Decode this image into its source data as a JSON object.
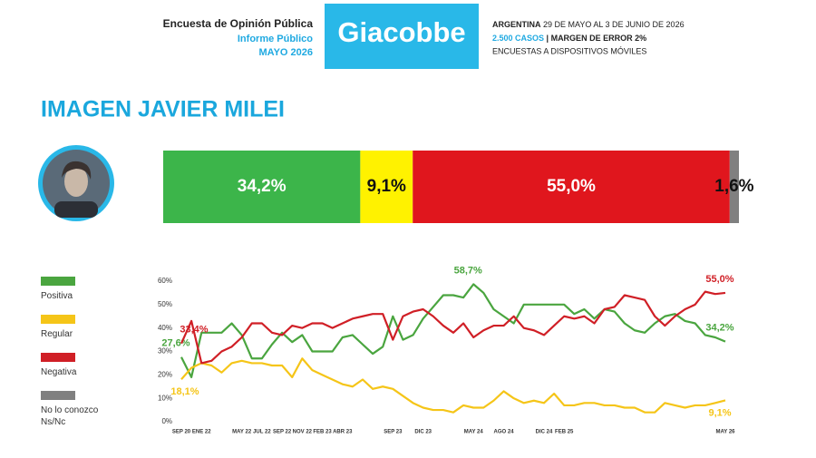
{
  "header": {
    "survey": "Encuesta de Opinión Pública",
    "report": "Informe Público",
    "date": "MAYO 2026",
    "brand": "Giacobbe",
    "country": "ARGENTINA",
    "period": "29 DE MAYO AL 3 DE JUNIO DE 2026",
    "cases": "2.500 CASOS",
    "margin": "| MARGEN DE ERROR 2%",
    "method": "ENCUESTAS A DISPOSITIVOS MÓVILES"
  },
  "title": "IMAGEN JAVIER MILEI",
  "chart_data": [
    {
      "type": "stacked_bar",
      "series": [
        {
          "name": "Positiva",
          "color": "#3cb54a",
          "values": [
            34.2
          ],
          "value_labels": [
            "34,2%"
          ]
        },
        {
          "name": "Regular",
          "color": "#fff200",
          "values": [
            9.1
          ],
          "value_labels": [
            "9,1%"
          ]
        },
        {
          "name": "Negativa",
          "color": "#e0161d",
          "values": [
            55.0
          ],
          "value_labels": [
            "55,0%"
          ]
        },
        {
          "name": "No lo conozco Ns/Nc",
          "color": "#808080",
          "values": [
            1.6
          ],
          "value_labels": [
            "1,6%"
          ]
        }
      ]
    },
    {
      "type": "line",
      "categories": [
        "SEP 20",
        null,
        "ENE 22",
        null,
        null,
        null,
        "MAY 22",
        null,
        "JUL 22",
        null,
        "SEP 22",
        null,
        "NOV 22",
        null,
        "FEB 23",
        null,
        "ABR 23",
        null,
        null,
        null,
        null,
        "SEP 23",
        null,
        null,
        "DIC 23",
        null,
        null,
        null,
        null,
        "MAY 24",
        null,
        null,
        "AGO 24",
        null,
        null,
        null,
        "DIC 24",
        null,
        "FEB 25",
        null,
        null,
        null,
        null,
        null,
        null,
        null,
        null,
        null,
        null,
        null,
        null,
        null,
        null,
        null,
        "MAY 26"
      ],
      "ylim": [
        0,
        60
      ],
      "yticks": [
        {
          "value": 0,
          "label": "0%"
        },
        {
          "value": 10,
          "label": "10%"
        },
        {
          "value": 20,
          "label": "20%"
        },
        {
          "value": 30,
          "label": "30%"
        },
        {
          "value": 40,
          "label": "40%"
        },
        {
          "value": 50,
          "label": "50%"
        },
        {
          "value": 60,
          "label": "60%"
        }
      ],
      "grid": false,
      "series": [
        {
          "name": "Positiva",
          "color": "#4aa53f",
          "values": [
            27.6,
            19,
            38,
            38,
            38,
            42,
            37,
            27,
            27,
            33,
            38,
            34,
            37,
            30,
            30,
            30,
            36,
            37,
            33,
            29,
            32,
            45,
            35,
            37,
            44,
            49,
            54,
            54,
            53,
            58.7,
            55,
            48,
            45,
            42,
            50,
            50,
            50,
            50,
            50,
            46,
            48,
            44,
            48,
            47,
            42,
            39,
            38,
            42,
            45,
            46,
            43,
            42,
            37,
            36,
            34.2
          ],
          "value_labels": [
            "27,6%",
            null,
            null,
            null,
            null,
            null,
            null,
            null,
            null,
            null,
            null,
            null,
            null,
            null,
            null,
            null,
            null,
            null,
            null,
            null,
            null,
            null,
            null,
            null,
            null,
            null,
            null,
            null,
            null,
            "58,7%",
            null,
            null,
            null,
            null,
            null,
            null,
            null,
            null,
            null,
            null,
            null,
            null,
            null,
            null,
            null,
            null,
            null,
            null,
            null,
            null,
            null,
            null,
            null,
            null,
            "34,2%"
          ]
        },
        {
          "name": "Regular",
          "color": "#f5c518",
          "values": [
            18.1,
            23,
            25,
            24,
            21,
            25,
            26,
            25,
            25,
            24,
            24,
            19,
            27,
            22,
            20,
            18,
            16,
            15,
            18,
            14,
            15,
            14,
            11,
            8,
            6,
            5,
            5,
            4,
            7,
            6,
            6,
            9,
            13,
            10,
            8,
            9,
            8,
            12,
            7,
            7,
            8,
            8,
            7,
            7,
            6,
            6,
            4,
            4,
            8,
            7,
            6,
            7,
            7,
            8,
            9.1
          ],
          "value_labels": [
            "18,1%",
            null,
            null,
            null,
            null,
            null,
            null,
            null,
            null,
            null,
            null,
            null,
            null,
            null,
            null,
            null,
            null,
            null,
            null,
            null,
            null,
            null,
            null,
            null,
            null,
            null,
            null,
            null,
            null,
            null,
            null,
            null,
            null,
            null,
            null,
            null,
            null,
            null,
            null,
            null,
            null,
            null,
            null,
            null,
            null,
            null,
            null,
            null,
            null,
            null,
            null,
            null,
            null,
            null,
            "9,1%"
          ]
        },
        {
          "name": "Negativa",
          "color": "#d01f26",
          "values": [
            33.4,
            43,
            25,
            26,
            30,
            32,
            36,
            42,
            42,
            38,
            37,
            41,
            40,
            42,
            42,
            40,
            42,
            44,
            45,
            46,
            46,
            35,
            45,
            47,
            48,
            45,
            41,
            38,
            42,
            36,
            39,
            41,
            41,
            45,
            40,
            39,
            37,
            41,
            45,
            44,
            45,
            42,
            48,
            49,
            54,
            53,
            52,
            45,
            41,
            45,
            48,
            50,
            55.5,
            54.5,
            55.0
          ],
          "value_labels": [
            "33,4%",
            null,
            null,
            null,
            null,
            null,
            null,
            null,
            null,
            null,
            null,
            null,
            null,
            null,
            null,
            null,
            null,
            null,
            null,
            null,
            null,
            null,
            null,
            null,
            null,
            null,
            null,
            null,
            null,
            null,
            null,
            null,
            null,
            null,
            null,
            null,
            null,
            null,
            null,
            null,
            null,
            null,
            null,
            null,
            null,
            null,
            null,
            null,
            null,
            null,
            null,
            null,
            null,
            null,
            "55,0%"
          ]
        },
        {
          "name": "No lo conozco Ns/Nc",
          "color": "#808080",
          "values": [
            null,
            null,
            null,
            null,
            null,
            null,
            null,
            null,
            null,
            null,
            null,
            null,
            null,
            null,
            null,
            null,
            null,
            null,
            null,
            null,
            null,
            null,
            null,
            null,
            null,
            null,
            null,
            null,
            null,
            null,
            null,
            null,
            null,
            null,
            null,
            null,
            null,
            null,
            null,
            null,
            null,
            null,
            null,
            null,
            null,
            null,
            null,
            null,
            null,
            null,
            null,
            null,
            null,
            null,
            null
          ]
        }
      ]
    }
  ]
}
